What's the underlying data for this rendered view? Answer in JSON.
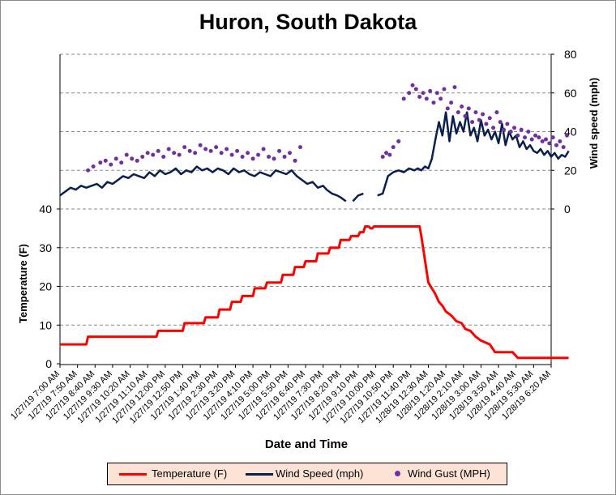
{
  "chart_data": {
    "type": "line",
    "title": "Huron, South Dakota",
    "xlabel": "Date and Time",
    "ylabel_left": "Temperature (F)",
    "ylabel_right": "Wind speed (mph)",
    "x_tick_labels": [
      "1/27/19 7:00 AM",
      "1/27/19 7:50 AM",
      "1/27/19 8:40 AM",
      "1/27/19 9:30 AM",
      "1/27/19 10:20 AM",
      "1/27/19 11:10 AM",
      "1/27/19 12:00 PM",
      "1/27/19 12:50 PM",
      "1/27/19 1:40 PM",
      "1/27/19 2:30 PM",
      "1/27/19 3:20 PM",
      "1/27/19 4:10 PM",
      "1/27/19 5:00 PM",
      "1/27/19 5:50 PM",
      "1/27/19 6:40 PM",
      "1/27/19 7:30 PM",
      "1/27/19 8:20 PM",
      "1/27/19 9:10 PM",
      "1/27/19 10:00 PM",
      "1/27/19 10:50 PM",
      "1/27/19 11:40 PM",
      "1/28/19 12:30 AM",
      "1/28/19 1:20 AM",
      "1/28/19 2:10 AM",
      "1/28/19 3:00 AM",
      "1/28/19 3:50 AM",
      "1/28/19 4:40 AM",
      "1/28/19 5:30 AM",
      "1/28/19 6:20 AM"
    ],
    "y_left_ticks": [
      "0",
      "10",
      "20",
      "30",
      "40"
    ],
    "y_right_ticks": [
      "0",
      "20",
      "40",
      "60",
      "80"
    ],
    "y_left_range": [
      0,
      40
    ],
    "y_right_range": [
      0,
      80
    ],
    "grid": "horizontal dashed",
    "legend_position": "bottom",
    "legend": [
      "Temperature (F)",
      "Wind Speed (mph)",
      "Wind Gust (MPH)"
    ],
    "colors": {
      "temperature": "#ff0000",
      "wind_speed": "#0b1f4f",
      "wind_gust": "#7030a0",
      "legend_bg": "#fde3d6"
    },
    "series": [
      {
        "name": "Temperature (F)",
        "axis": "left",
        "x": [
          0,
          1,
          1.5,
          1.6,
          5.5,
          5.6,
          7.0,
          7.1,
          8.2,
          8.3,
          9.0,
          9.1,
          9.7,
          9.8,
          10.3,
          10.4,
          11.0,
          11.1,
          11.7,
          11.8,
          12.6,
          12.7,
          13.3,
          13.4,
          13.9,
          14.0,
          14.6,
          14.7,
          15.3,
          15.4,
          15.9,
          16.0,
          16.5,
          16.6,
          17.0,
          17.1,
          17.3,
          17.4,
          17.6,
          17.7,
          17.8,
          17.9,
          18.0,
          18.2,
          18.4,
          18.5,
          18.6,
          18.8,
          19.0,
          19.6,
          20.0,
          20.3,
          20.5,
          20.6,
          20.7,
          20.8,
          20.9,
          21.0,
          21.2,
          21.4,
          21.6,
          21.8,
          22.0,
          22.3,
          22.6,
          22.9,
          23.1,
          23.4,
          23.7,
          24.0,
          24.5,
          24.8,
          25.8,
          26.1,
          27,
          28,
          29
        ],
        "y": [
          5,
          5,
          5,
          7,
          7,
          8.5,
          8.5,
          10.5,
          10.5,
          12,
          12,
          14,
          14,
          16,
          16,
          17.5,
          17.5,
          19.5,
          19.5,
          21,
          21,
          23,
          23,
          25,
          25,
          26.5,
          26.5,
          28.5,
          28.5,
          30,
          30,
          32,
          32,
          33,
          33,
          34,
          34,
          35.5,
          35.5,
          35,
          35,
          35.5,
          35.5,
          35.5,
          35.5,
          35.5,
          35.5,
          35.5,
          35.5,
          35.5,
          35.5,
          35.5,
          35.5,
          33,
          30,
          27,
          24,
          21,
          19.5,
          18,
          16,
          15,
          13.5,
          12.5,
          11,
          10.5,
          9,
          8.5,
          7,
          6,
          5,
          3,
          3,
          1.5,
          1.5,
          1.5,
          1.5
        ]
      },
      {
        "name": "Wind Speed (mph)",
        "axis": "right",
        "x": [
          0,
          0.3,
          0.6,
          0.9,
          1.2,
          1.5,
          1.8,
          2.1,
          2.4,
          2.7,
          3.0,
          3.3,
          3.6,
          3.9,
          4.2,
          4.5,
          4.8,
          5.1,
          5.4,
          5.7,
          6.0,
          6.3,
          6.6,
          6.9,
          7.2,
          7.5,
          7.8,
          8.1,
          8.4,
          8.7,
          9.0,
          9.3,
          9.6,
          9.9,
          10.2,
          10.5,
          10.8,
          11.1,
          11.4,
          11.7,
          12.0,
          12.3,
          12.6,
          12.9,
          13.2,
          13.5,
          13.8,
          14.1,
          14.4,
          14.7,
          15.0,
          15.2,
          15.5,
          15.8,
          16.0,
          16.3,
          null,
          16.7,
          17.0,
          17.3,
          null,
          18.1,
          18.4,
          18.7,
          19.0,
          19.3,
          19.6,
          19.9,
          20.2,
          20.4,
          20.6,
          20.8,
          21.0,
          21.2,
          21.4,
          21.6,
          21.8,
          22.0,
          22.2,
          22.4,
          22.6,
          22.8,
          23.0,
          23.2,
          23.4,
          23.6,
          23.8,
          24.0,
          24.2,
          24.4,
          24.6,
          24.8,
          25.0,
          25.2,
          25.4,
          25.6,
          25.8,
          26.0,
          26.2,
          26.4,
          26.6,
          26.8,
          27.0,
          27.2,
          27.4,
          27.6,
          27.8,
          28.0,
          28.2,
          28.4,
          28.6,
          28.8,
          29.0
        ],
        "y": [
          7,
          9,
          11,
          10,
          12,
          11,
          12,
          13,
          11,
          14,
          13,
          15,
          17,
          16,
          18,
          17,
          16,
          19,
          17,
          20,
          18,
          19,
          21,
          18,
          20,
          19,
          22,
          20,
          21,
          19,
          21,
          20,
          18,
          21,
          19,
          20,
          18,
          17,
          19,
          18,
          17,
          20,
          19,
          18,
          20,
          17,
          15,
          13,
          14,
          11,
          12,
          10,
          8,
          7,
          6,
          4,
          null,
          4,
          7,
          8,
          null,
          7,
          8,
          17,
          19,
          20,
          19,
          21,
          20,
          21,
          20,
          22,
          21,
          26,
          36,
          45,
          38,
          50,
          35,
          48,
          39,
          45,
          40,
          50,
          38,
          42,
          35,
          46,
          38,
          41,
          36,
          40,
          34,
          44,
          33,
          40,
          36,
          38,
          32,
          35,
          31,
          33,
          30,
          29,
          31,
          28,
          30,
          27,
          29,
          26,
          28,
          27,
          30
        ]
      },
      {
        "name": "Wind Gust (MPH)",
        "axis": "right",
        "x": [
          1.6,
          1.9,
          2.3,
          2.6,
          2.9,
          3.2,
          3.5,
          3.8,
          4.1,
          4.4,
          4.7,
          5.0,
          5.3,
          5.6,
          5.9,
          6.2,
          6.5,
          6.8,
          7.1,
          7.4,
          7.7,
          8.0,
          8.3,
          8.6,
          8.9,
          9.2,
          9.5,
          9.8,
          10.1,
          10.4,
          10.7,
          11.0,
          11.3,
          11.6,
          11.9,
          12.2,
          12.5,
          12.8,
          13.1,
          13.4,
          13.7,
          18.4,
          18.6,
          18.8,
          19.0,
          19.3,
          19.6,
          19.9,
          20.1,
          20.3,
          20.5,
          20.7,
          20.9,
          21.1,
          21.3,
          21.5,
          21.7,
          21.9,
          22.1,
          22.3,
          22.5,
          22.7,
          22.9,
          23.1,
          23.3,
          23.5,
          23.7,
          23.9,
          24.1,
          24.3,
          24.5,
          24.7,
          24.9,
          25.1,
          25.3,
          25.5,
          25.7,
          25.9,
          26.1,
          26.3,
          26.5,
          26.7,
          26.9,
          27.1,
          27.3,
          27.5,
          27.7,
          27.9,
          28.1,
          28.3,
          28.5,
          28.7,
          28.9
        ],
        "y": [
          20,
          22,
          24,
          25,
          23,
          26,
          24,
          28,
          26,
          25,
          27,
          29,
          28,
          30,
          27,
          31,
          29,
          28,
          32,
          30,
          29,
          33,
          31,
          30,
          32,
          29,
          31,
          28,
          30,
          27,
          29,
          26,
          28,
          31,
          27,
          26,
          30,
          27,
          29,
          25,
          32,
          27,
          29,
          28,
          32,
          35,
          57,
          60,
          64,
          62,
          58,
          60,
          57,
          61,
          55,
          60,
          57,
          62,
          52,
          55,
          63,
          50,
          53,
          48,
          52,
          45,
          50,
          46,
          49,
          44,
          47,
          42,
          50,
          45,
          41,
          44,
          40,
          42,
          38,
          41,
          37,
          40,
          36,
          38,
          37,
          35,
          36,
          34,
          37,
          33,
          35,
          32,
          38
        ]
      }
    ]
  }
}
